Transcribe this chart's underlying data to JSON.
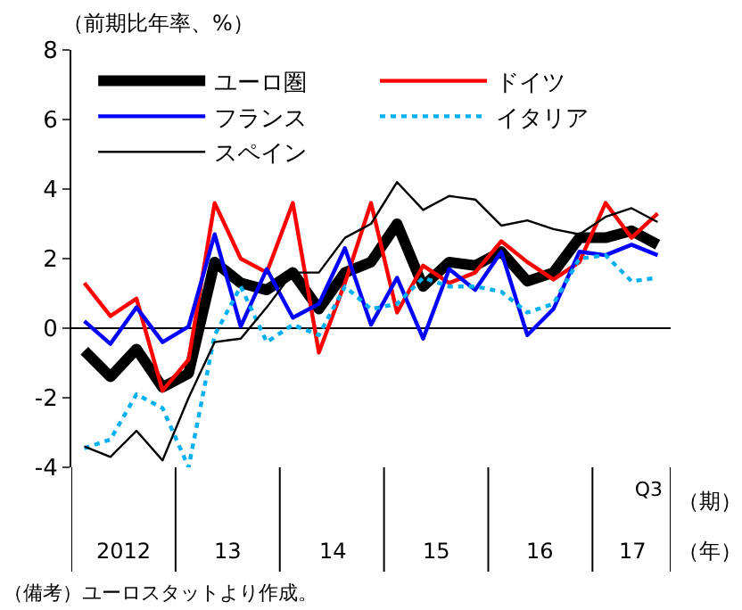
{
  "chart_data": {
    "type": "line",
    "ylabel": "（前期比年率、%）",
    "categories": [
      null,
      null,
      null,
      null,
      null,
      null,
      null,
      null,
      null,
      null,
      null,
      null,
      null,
      null,
      null,
      null,
      null,
      null,
      null,
      null,
      null,
      null,
      "Q3"
    ],
    "series": [
      {
        "name": "ユーロ圏",
        "color": "#000000",
        "line_style": "solid",
        "values": [
          -0.65,
          -1.4,
          -0.6,
          -1.7,
          -1.3,
          1.9,
          1.3,
          1.1,
          1.6,
          0.55,
          1.6,
          1.9,
          3.0,
          1.2,
          1.9,
          1.8,
          2.2,
          1.35,
          1.6,
          2.6,
          2.6,
          2.8,
          2.4
        ]
      },
      {
        "name": "ドイツ",
        "color": "#ff0000",
        "line_style": "solid",
        "values": [
          1.3,
          0.35,
          0.85,
          -1.8,
          -0.9,
          3.6,
          2.0,
          1.6,
          3.6,
          -0.7,
          1.3,
          3.6,
          0.45,
          1.8,
          1.3,
          1.6,
          2.5,
          1.9,
          1.4,
          1.9,
          3.6,
          2.6,
          3.3
        ]
      },
      {
        "name": "フランス",
        "color": "#0000ff",
        "line_style": "solid",
        "values": [
          0.2,
          -0.45,
          0.6,
          -0.4,
          0.05,
          2.7,
          0.05,
          1.7,
          0.3,
          0.7,
          2.3,
          0.1,
          1.45,
          -0.3,
          1.7,
          1.1,
          2.2,
          -0.2,
          0.55,
          2.2,
          2.1,
          2.4,
          2.1
        ]
      },
      {
        "name": "イタリア",
        "color": "#00b0f0",
        "line_style": "dotted",
        "values": [
          -3.45,
          -3.2,
          -1.9,
          -2.3,
          -4.0,
          -0.2,
          1.2,
          -0.4,
          0.1,
          -0.2,
          1.2,
          0.55,
          0.7,
          1.45,
          1.2,
          1.2,
          1.05,
          0.45,
          0.7,
          2.0,
          2.1,
          1.35,
          1.45
        ]
      },
      {
        "name": "スペイン",
        "color": "#000000",
        "line_style": "solid",
        "values": [
          -3.4,
          -3.7,
          -2.95,
          -3.8,
          -2.0,
          -0.4,
          -0.3,
          0.6,
          1.6,
          1.6,
          2.6,
          3.0,
          4.2,
          3.4,
          3.8,
          3.7,
          2.95,
          3.1,
          2.85,
          2.7,
          3.2,
          3.45,
          3.05
        ]
      }
    ],
    "ylim": [
      -4,
      8
    ],
    "yticks": [
      -4,
      -2,
      0,
      2,
      4,
      6,
      8
    ],
    "grid": false,
    "ref_lines": [
      {
        "axis": "y",
        "value": 0,
        "color": "#000000"
      }
    ],
    "legend": "top",
    "marker": "none",
    "annotations": [
      "2012",
      "13",
      "14",
      "15",
      "16",
      "17",
      "（期）",
      "（年）",
      "（備考）ユーロスタットより作成。"
    ]
  }
}
